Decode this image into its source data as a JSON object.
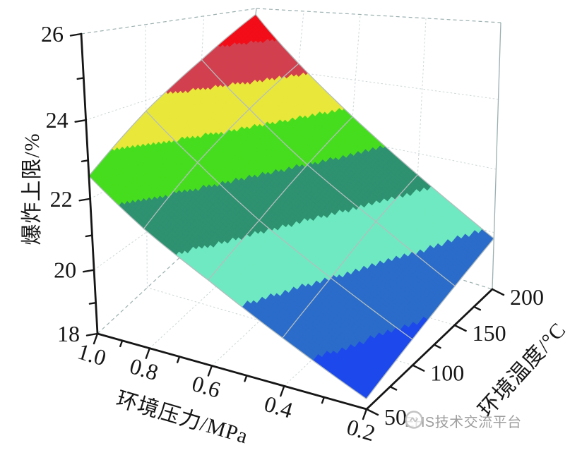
{
  "watermark": {
    "icon": "broadcast-logo-icon",
    "text": "EHS技术交流平台",
    "color": "#9e9e9e"
  },
  "chart_data": {
    "type": "surface3d",
    "title": "",
    "x_axis": {
      "label": "环境压力/MPa",
      "range": [
        0.2,
        1.0
      ],
      "major_ticks": [
        0.2,
        0.4,
        0.6,
        0.8,
        1.0
      ],
      "minor_step": 0.1
    },
    "y_axis": {
      "label": "环境温度/°C",
      "range": [
        50,
        200
      ],
      "major_ticks": [
        50,
        100,
        150,
        200
      ],
      "minor_step": 25
    },
    "z_axis": {
      "label": "爆炸上限/%",
      "range": [
        18,
        26
      ],
      "major_ticks": [
        18,
        20,
        22,
        24,
        26
      ],
      "minor_step": 1
    },
    "surface": {
      "pressure_MPa": [
        0.2,
        0.4,
        0.6,
        0.8,
        1.0
      ],
      "temperature_C": [
        50,
        100,
        150,
        200
      ],
      "uel_percent": [
        [
          18.3,
          19.4,
          20.5,
          21.5,
          22.6
        ],
        [
          18.8,
          20.0,
          21.2,
          22.5,
          23.7
        ],
        [
          19.3,
          20.7,
          22.0,
          23.4,
          24.7
        ],
        [
          19.8,
          21.3,
          22.8,
          24.3,
          25.8
        ]
      ]
    },
    "color_bands": [
      {
        "from": 18,
        "to": 19,
        "color": "#1d49ec"
      },
      {
        "from": 19,
        "to": 20,
        "color": "#2b6cca"
      },
      {
        "from": 20,
        "to": 21,
        "color": "#6fe9c1"
      },
      {
        "from": 21,
        "to": 22,
        "color": "#2e9170"
      },
      {
        "from": 22,
        "to": 23,
        "color": "#46dd1e"
      },
      {
        "from": 23,
        "to": 24,
        "color": "#e9e73a"
      },
      {
        "from": 24,
        "to": 25,
        "color": "#d2404f"
      },
      {
        "from": 25,
        "to": 26,
        "color": "#f20d18"
      }
    ],
    "mesh_color": "#b4bebe",
    "wall_grid_color": "#ccd6d6",
    "edge_color": "#9bafaf",
    "axis_color": "#161616",
    "grid": true,
    "legend": "none"
  }
}
